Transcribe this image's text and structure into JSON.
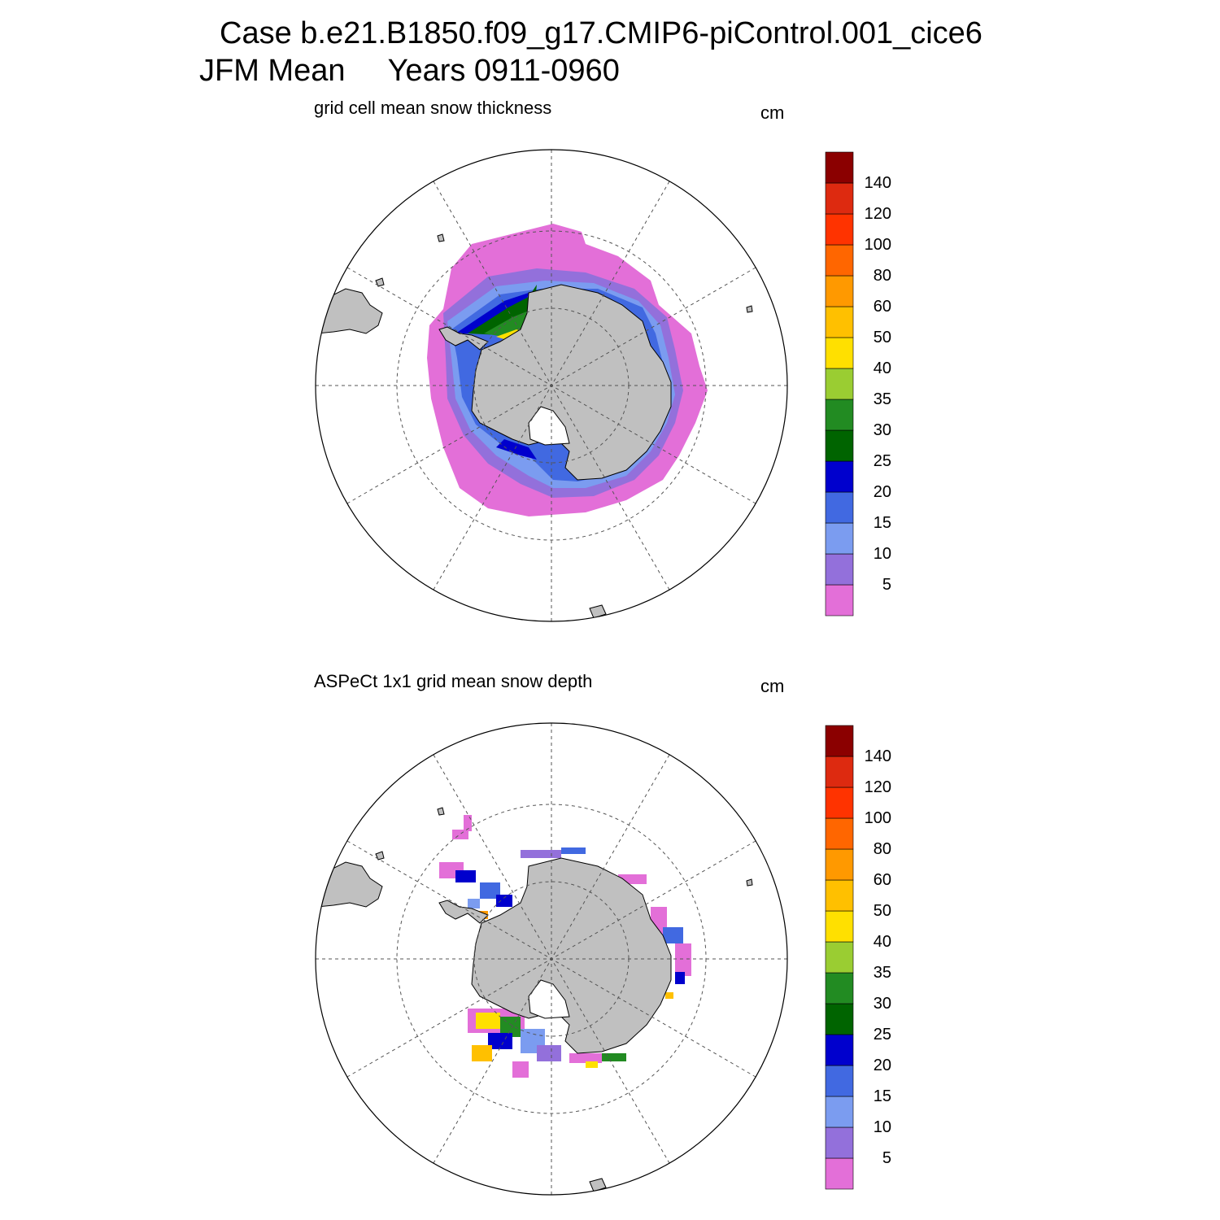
{
  "header": {
    "case": "Case b.e21.B1850.f09_g17.CMIP6-piControl.001_cice6",
    "period": "JFM Mean     Years 0911-0960"
  },
  "panels": [
    {
      "id": "top",
      "title": "grid cell mean snow thickness",
      "units": "cm"
    },
    {
      "id": "bottom",
      "title": "ASPeCt 1x1 grid mean snow depth",
      "units": "cm"
    }
  ],
  "colorbar": {
    "colors": [
      "#e36fd8",
      "#9370db",
      "#7b9cf0",
      "#4169e1",
      "#0000cd",
      "#006400",
      "#228b22",
      "#9acd32",
      "#ffe000",
      "#ffc000",
      "#ff9900",
      "#ff6600",
      "#ff3300",
      "#dd2a10",
      "#8b0000"
    ],
    "labels": [
      "5",
      "10",
      "15",
      "20",
      "25",
      "30",
      "35",
      "40",
      "50",
      "60",
      "80",
      "100",
      "120",
      "140"
    ]
  },
  "map": {
    "projection": "south-polar-stereographic",
    "land_color": "#c0c0c0",
    "graticule": "dashed"
  }
}
